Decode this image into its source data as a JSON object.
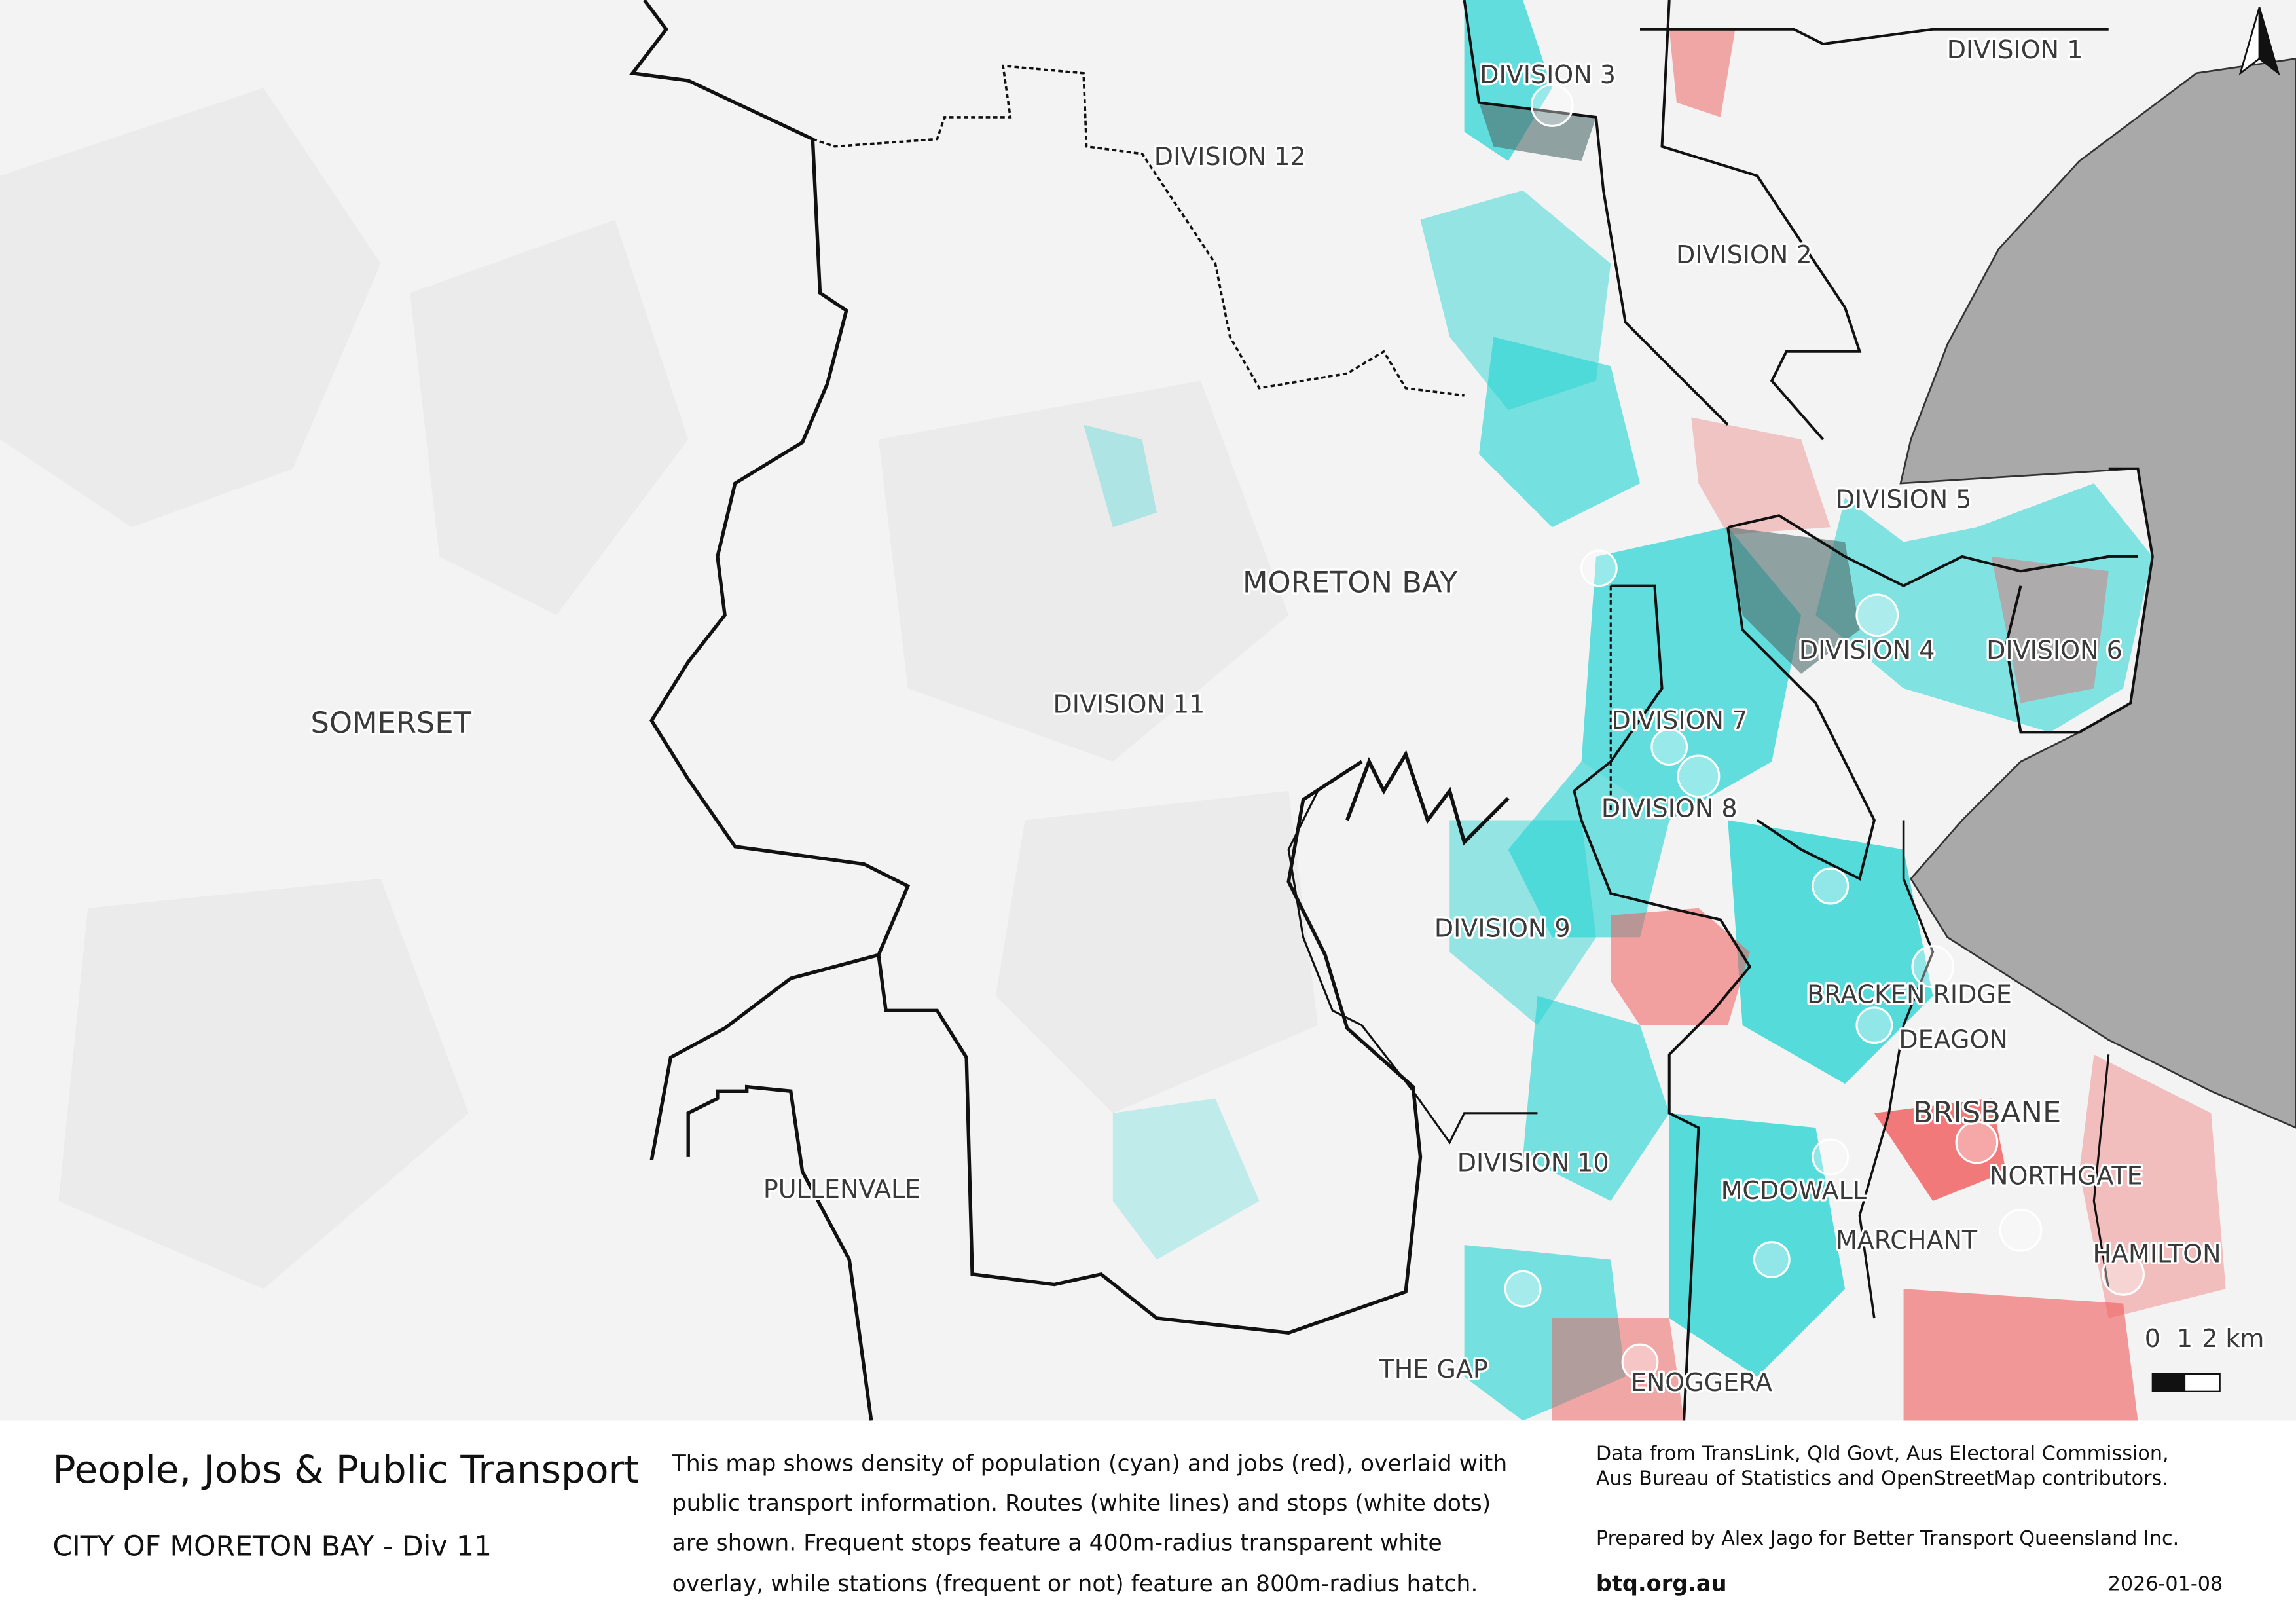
{
  "map": {
    "labels": [
      "DIVISION 3",
      "DIVISION 1",
      "DIVISION 12",
      "DIVISION 2",
      "DIVISION 5",
      "MORETON BAY",
      "DIVISION 4",
      "DIVISION 6",
      "SOMERSET",
      "DIVISION 11",
      "DIVISION 7",
      "DIVISION 8",
      "DIVISION 9",
      "BRACKEN RIDGE",
      "DEAGON",
      "BRISBANE",
      "DIVISION 10",
      "MCDOWALL",
      "NORTHGATE",
      "PULLENVALE",
      "MARCHANT",
      "HAMILTON",
      "THE GAP",
      "ENOGGERA"
    ]
  },
  "scale_bar": {
    "ticks": [
      "0",
      "1",
      "2 km"
    ]
  },
  "footer": {
    "title": "People, Jobs & Public Transport",
    "subtitle": "CITY OF MORETON BAY - Div 11",
    "description": [
      "This map shows density of population (cyan) and jobs (red), overlaid with",
      "public transport information. Routes (white lines) and stops (white dots)",
      "are shown. Frequent stops feature a 400m-radius transparent white",
      "overlay, while stations (frequent or not) feature an 800m-radius hatch."
    ],
    "credits": [
      "Data from TransLink,  Qld Govt,  Aus Electoral Commission,",
      "Aus Bureau of Statistics and OpenStreetMap contributors."
    ],
    "prepared_by": "Prepared by Alex Jago for Better Transport Queensland Inc.",
    "website": "btq.org.au",
    "date": "2026-01-08"
  }
}
